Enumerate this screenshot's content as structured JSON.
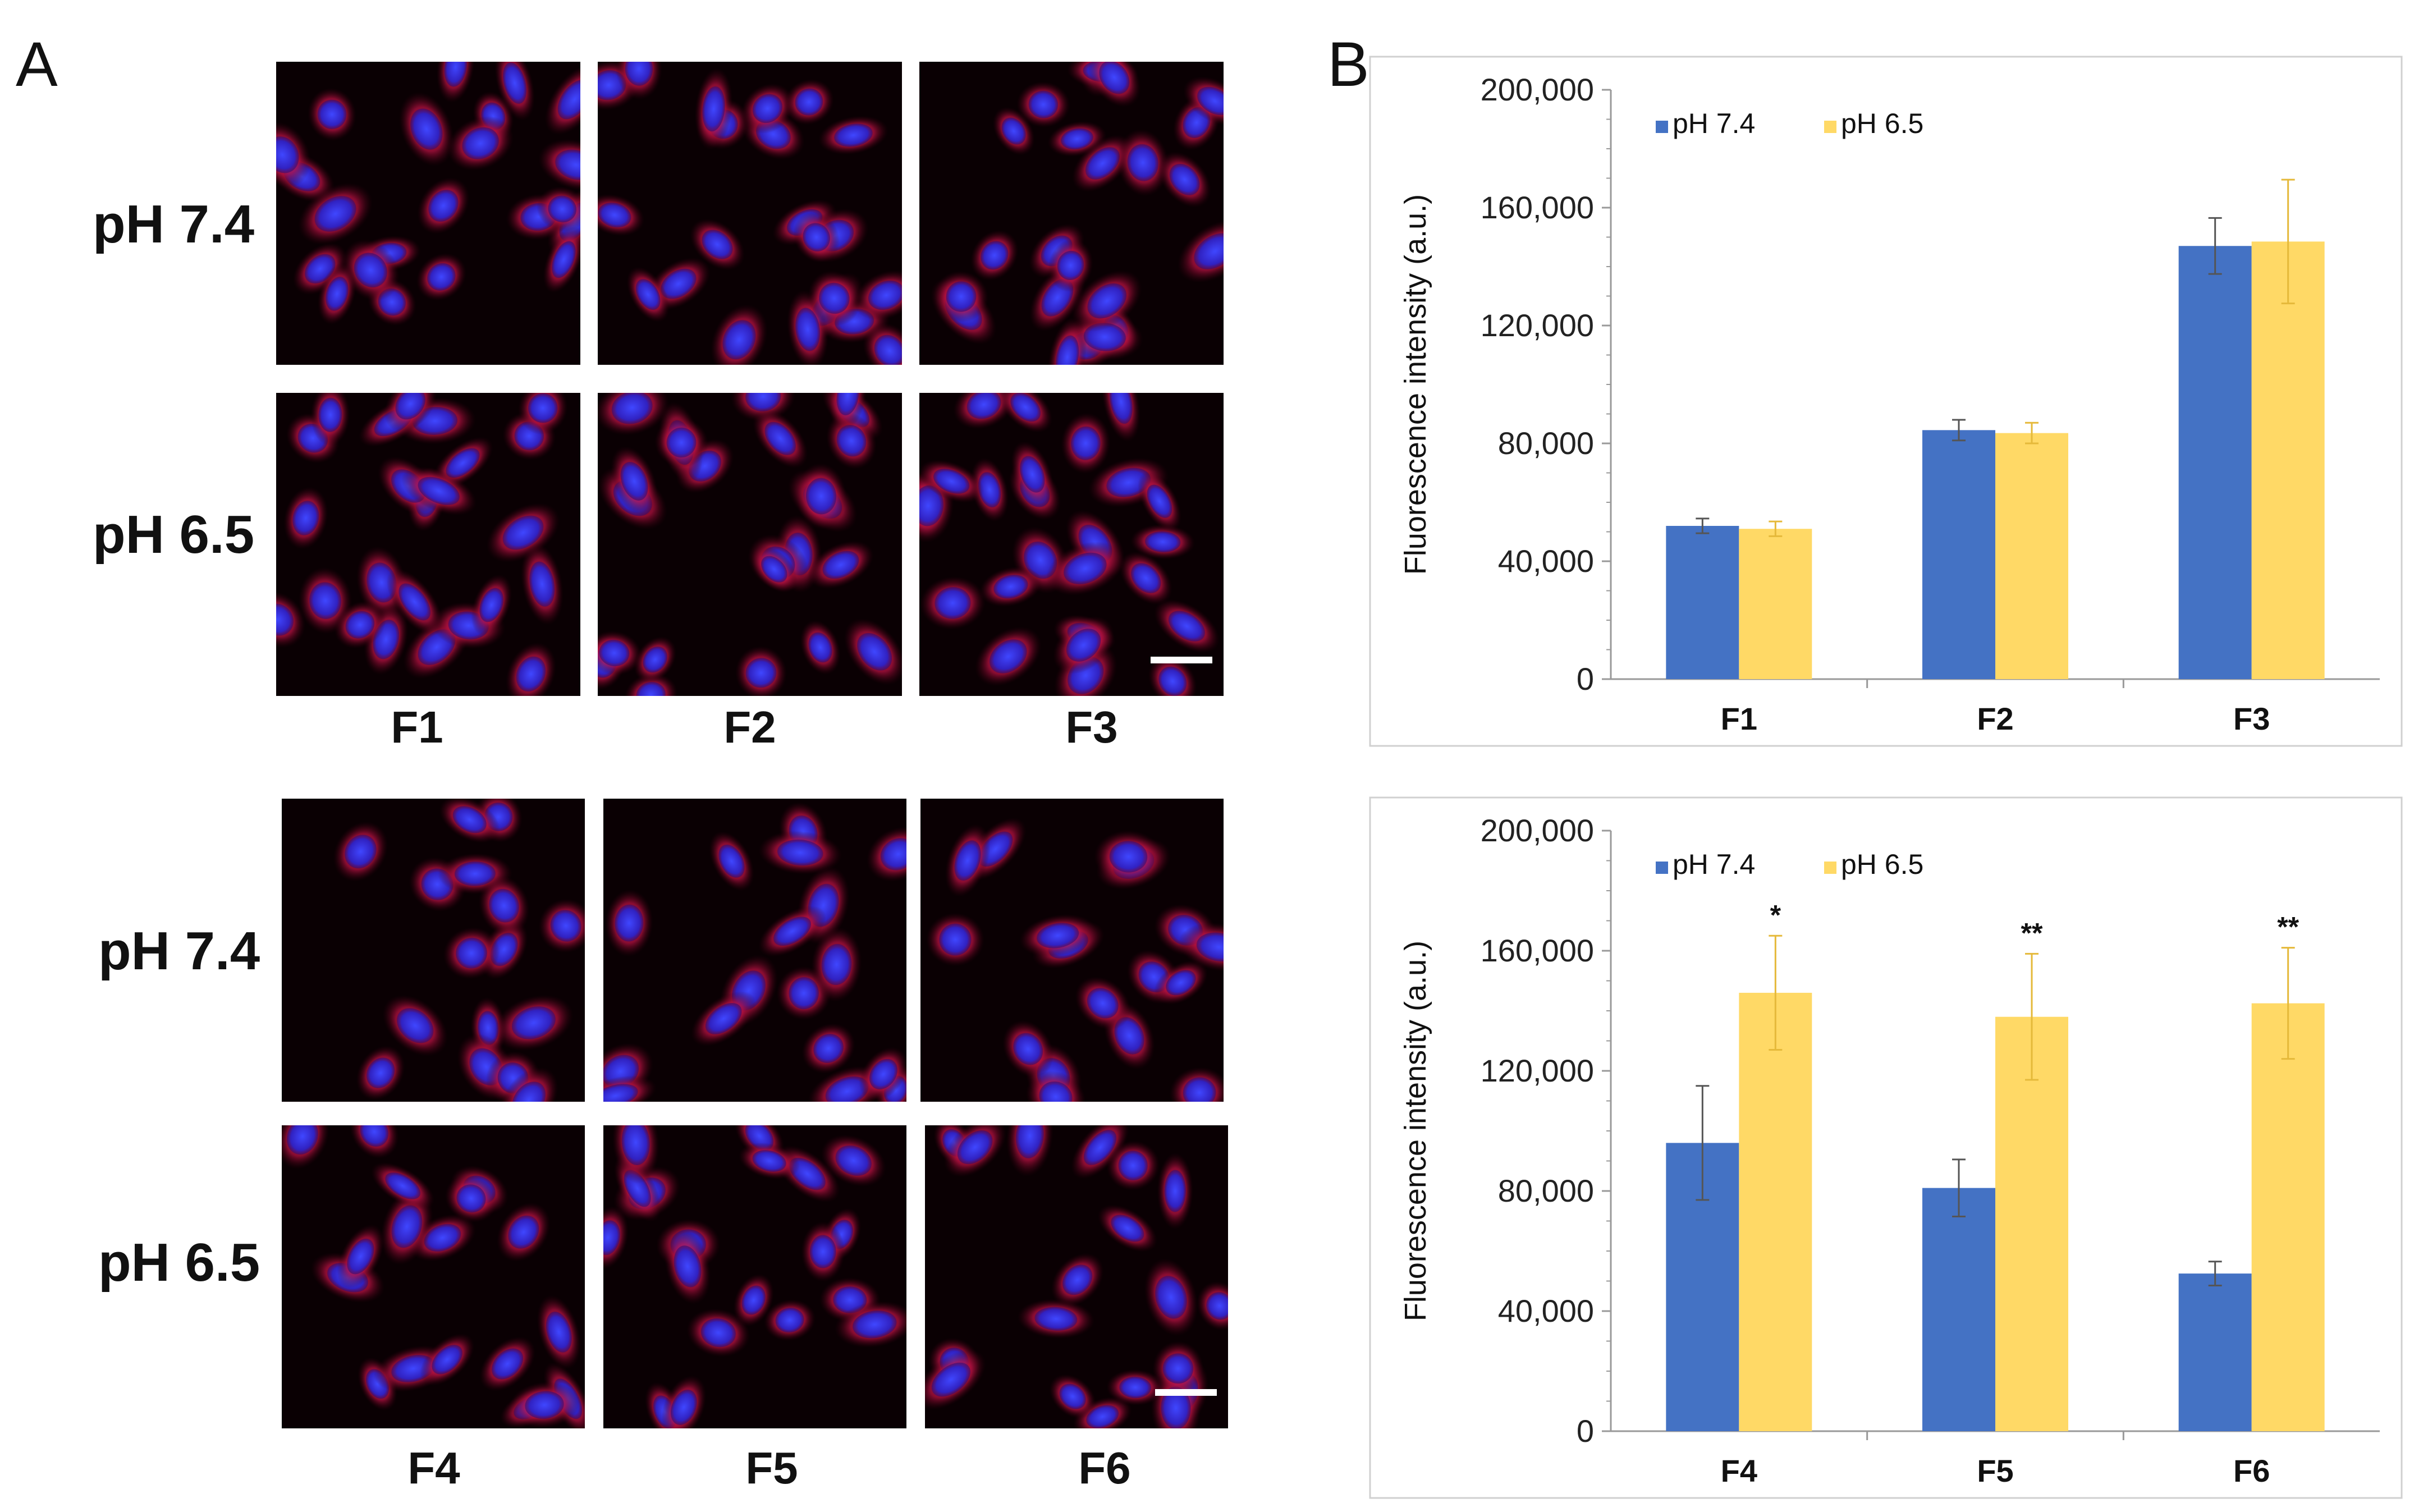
{
  "panel_labels": {
    "a": "A",
    "b": "B"
  },
  "panel_a": {
    "top": {
      "row_labels": [
        "pH 7.4",
        "pH 6.5"
      ],
      "col_labels": [
        "F1",
        "F2",
        "F3"
      ]
    },
    "bottom": {
      "row_labels": [
        "pH 7.4",
        "pH 6.5"
      ],
      "col_labels": [
        "F4",
        "F5",
        "F6"
      ]
    }
  },
  "colors": {
    "blue": "#4472C4",
    "yellow": "#FFD966",
    "cell_red": "#c4123a",
    "nucleus_blue": "#2a2de0"
  },
  "chart_data": [
    {
      "type": "bar",
      "ylabel": "Fluorescence intensity (a.u.)",
      "xlabel": "",
      "ylim": [
        0,
        200000
      ],
      "yticks": [
        "0",
        "40,000",
        "80,000",
        "120,000",
        "160,000",
        "200,000"
      ],
      "categories": [
        "F1",
        "F2",
        "F3"
      ],
      "legend_position": "top-left",
      "series": [
        {
          "name": "pH 7.4",
          "color": "#4472C4",
          "values": [
            52000,
            84500,
            147000
          ],
          "errors": [
            2500,
            3500,
            9500
          ]
        },
        {
          "name": "pH 6.5",
          "color": "#FFD966",
          "values": [
            51000,
            83500,
            148500
          ],
          "errors": [
            2500,
            3500,
            21000
          ]
        }
      ],
      "annotations": [
        "",
        "",
        ""
      ]
    },
    {
      "type": "bar",
      "ylabel": "Fluorescence intensity (a.u.)",
      "xlabel": "",
      "ylim": [
        0,
        200000
      ],
      "yticks": [
        "0",
        "40,000",
        "80,000",
        "120,000",
        "160,000",
        "200,000"
      ],
      "categories": [
        "F4",
        "F5",
        "F6"
      ],
      "legend_position": "top-left",
      "series": [
        {
          "name": "pH 7.4",
          "color": "#4472C4",
          "values": [
            96000,
            81000,
            52500
          ],
          "errors": [
            19000,
            9500,
            4000
          ]
        },
        {
          "name": "pH 6.5",
          "color": "#FFD966",
          "values": [
            146000,
            138000,
            142500
          ],
          "errors": [
            19000,
            21000,
            18500
          ]
        }
      ],
      "annotations": [
        "*",
        "**",
        "**"
      ]
    }
  ]
}
